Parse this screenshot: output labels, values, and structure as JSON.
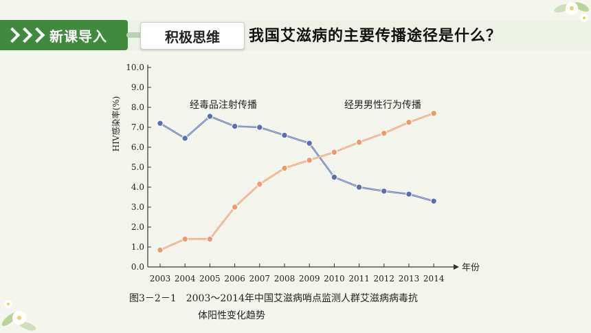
{
  "header": {
    "section_label": "新课导入",
    "subsection_label": "积极思维",
    "question": "我国艾滋病的主要传播途径是什么？"
  },
  "colors": {
    "accent_green": "#3f8a3c",
    "series_injection": "#5b6fb0",
    "series_msm": "#ef9a6a"
  },
  "icons": [
    "chevron-right-icon",
    "flower-decoration-icon"
  ],
  "chart_data": {
    "type": "line",
    "ylabel": "HIV感染率(%)",
    "xlabel": "年份",
    "ylim": [
      0,
      10
    ],
    "yticks": [
      "0.0",
      "1.0",
      "2.0",
      "3.0",
      "4.0",
      "5.0",
      "6.0",
      "7.0",
      "8.0",
      "9.0",
      "10.0"
    ],
    "categories": [
      "2003",
      "2004",
      "2005",
      "2006",
      "2007",
      "2008",
      "2009",
      "2010",
      "2011",
      "2012",
      "2013",
      "2014"
    ],
    "series": [
      {
        "name": "经毒品注射传播",
        "values": [
          7.2,
          6.45,
          7.55,
          7.05,
          7.0,
          6.6,
          6.2,
          4.5,
          4.0,
          3.8,
          3.65,
          3.3
        ]
      },
      {
        "name": "经男男性行为传播",
        "values": [
          0.85,
          1.4,
          1.4,
          3.0,
          4.15,
          4.95,
          5.35,
          5.75,
          6.25,
          6.7,
          7.25,
          7.7
        ]
      }
    ],
    "caption_line1": "图3－2－1　2003～2014年中国艾滋病哨点监测人群艾滋病病毒抗",
    "caption_line2": "体阳性变化趋势"
  }
}
